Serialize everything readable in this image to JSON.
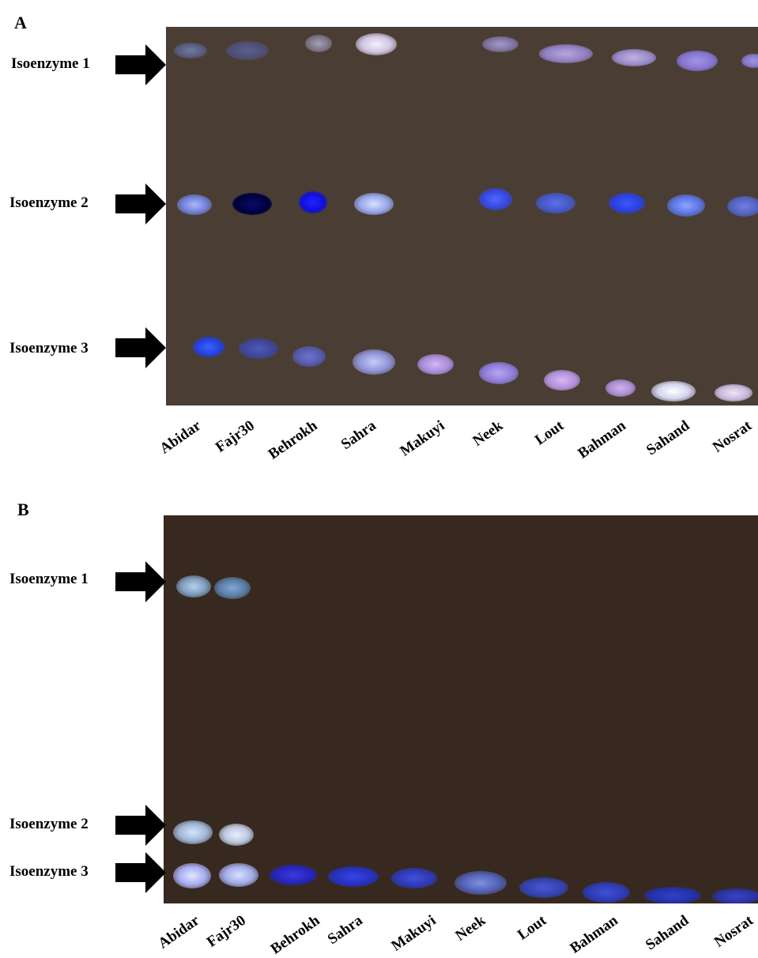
{
  "panels": [
    {
      "letter": "A",
      "isoenzymes": [
        "Isoenzyme 1",
        "Isoenzyme 2",
        "Isoenzyme 3"
      ],
      "lanes": [
        "Abidar",
        "Fajr30",
        "Behrokh",
        "Sahra",
        "Makuyi",
        "Neek",
        "Lout",
        "Bahman",
        "Sahand",
        "Nosrat"
      ]
    },
    {
      "letter": "B",
      "isoenzymes": [
        "Isoenzyme 1",
        "Isoenzyme 2",
        "Isoenzyme 3"
      ],
      "lanes": [
        "Abidar",
        "Fajr30",
        "Behrokh",
        "Sahra",
        "Makuyi",
        "Neek",
        "Lout",
        "Bahman",
        "Sahand",
        "Nosrat"
      ]
    }
  ],
  "colors": {
    "gel_a": "#4a3d34",
    "gel_b": "#37291f",
    "arrow": "#000000"
  }
}
